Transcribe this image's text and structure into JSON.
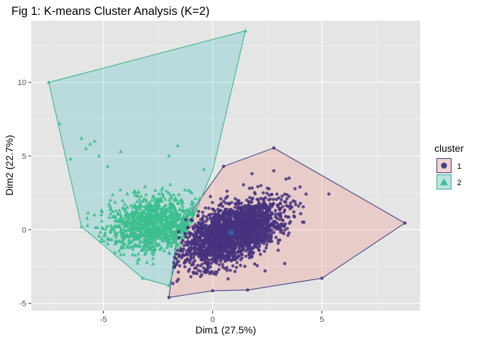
{
  "chart_data": {
    "type": "scatter",
    "title": "Fig 1: K-means Cluster Analysis (K=2)",
    "xlabel": "Dim1 (27.5%)",
    "ylabel": "Dim2 (22.7%)",
    "xlim": [
      -8.3,
      9.5
    ],
    "ylim": [
      -5.5,
      14.2
    ],
    "xticks": [
      -5,
      0,
      5
    ],
    "xtick_labels": [
      "-5",
      "0",
      "5"
    ],
    "yticks": [
      -5,
      0,
      5,
      10
    ],
    "ytick_labels": [
      "-5",
      "0",
      "5",
      "10"
    ],
    "grid": true,
    "panel_background": "#e5e5e5",
    "legend": {
      "title": "cluster",
      "position": "right",
      "entries": [
        {
          "label": "1",
          "shape": "circle",
          "color": "#414487"
        },
        {
          "label": "2",
          "shape": "triangle",
          "color": "#22a884"
        }
      ]
    },
    "series": [
      {
        "name": "1",
        "shape": "circle",
        "point_color": "#46337e",
        "hull_fill": "#f8766d",
        "hull_stroke": "#414487",
        "centroid": [
          0.85,
          -0.2
        ],
        "cloud": {
          "center": [
            0.9,
            -0.2
          ],
          "sd_major": 1.35,
          "sd_minor": 0.75,
          "angle_deg": 42,
          "n": 2400
        },
        "hull": [
          [
            8.8,
            0.45
          ],
          [
            2.8,
            5.55
          ],
          [
            0.5,
            4.3
          ],
          [
            -1.6,
            -0.1
          ],
          [
            -2.0,
            -4.6
          ],
          [
            0.0,
            -4.15
          ],
          [
            1.6,
            -4.1
          ],
          [
            5.0,
            -3.3
          ]
        ],
        "outliers": [
          [
            8.8,
            0.45
          ],
          [
            2.8,
            5.55
          ],
          [
            0.5,
            4.3
          ],
          [
            -2.0,
            -4.6
          ],
          [
            0.0,
            -4.15
          ],
          [
            1.6,
            -4.1
          ],
          [
            5.0,
            -3.3
          ],
          [
            3.5,
            3.5
          ],
          [
            2.8,
            4.0
          ],
          [
            4.0,
            2.9
          ],
          [
            3.3,
            -2.3
          ],
          [
            3.1,
            1.0
          ],
          [
            1.8,
            3.8
          ],
          [
            2.4,
            -2.8
          ]
        ]
      },
      {
        "name": "2",
        "shape": "triangle",
        "point_color": "#3cbf8e",
        "hull_fill": "#23b9be",
        "hull_stroke": "#36b88f",
        "centroid": [
          -2.5,
          0.4
        ],
        "cloud": {
          "center": [
            -2.6,
            0.4
          ],
          "sd_major": 1.1,
          "sd_minor": 0.9,
          "angle_deg": 20,
          "n": 1200
        },
        "hull": [
          [
            -7.5,
            10.0
          ],
          [
            1.5,
            13.5
          ],
          [
            0.0,
            4.0
          ],
          [
            -1.4,
            -1.0
          ],
          [
            -2.0,
            -3.8
          ],
          [
            -3.2,
            -3.3
          ],
          [
            -6.0,
            0.2
          ]
        ],
        "outliers": [
          [
            -7.5,
            10.0
          ],
          [
            1.5,
            13.5
          ],
          [
            -7.0,
            7.2
          ],
          [
            -6.0,
            0.2
          ],
          [
            -3.2,
            -3.3
          ],
          [
            -2.0,
            -3.8
          ],
          [
            -6.0,
            6.2
          ],
          [
            -5.6,
            5.8
          ],
          [
            -5.4,
            6.0
          ],
          [
            -5.8,
            5.5
          ],
          [
            -5.2,
            5.0
          ],
          [
            -4.8,
            4.3
          ],
          [
            -1.6,
            5.7
          ],
          [
            -2.0,
            5.0
          ],
          [
            -0.4,
            4.1
          ],
          [
            -6.5,
            4.8
          ],
          [
            -4.2,
            5.3
          ]
        ]
      }
    ]
  }
}
